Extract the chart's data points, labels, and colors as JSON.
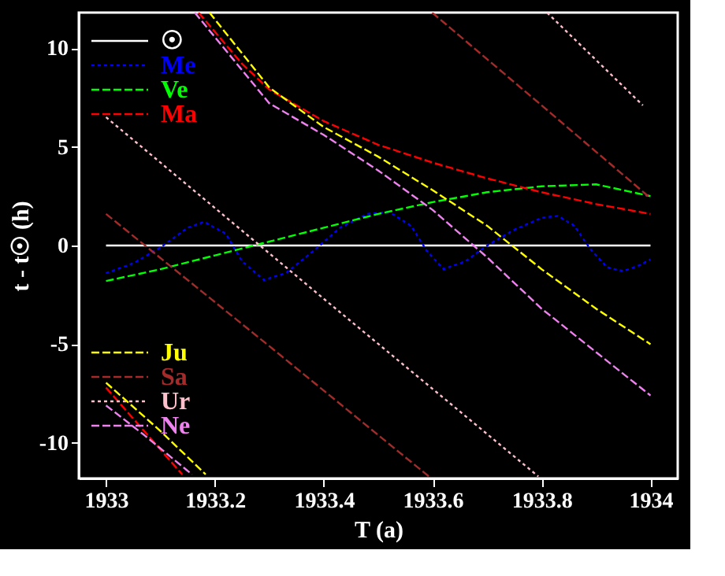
{
  "chart_data": {
    "type": "line",
    "xlabel": "T (a)",
    "ylabel": "t - t☉ (h)",
    "xlim": [
      1932.95,
      1934.05
    ],
    "ylim": [
      -11.8,
      11.8
    ],
    "xticks": [
      1933,
      1933.2,
      1933.4,
      1933.6,
      1933.8,
      1934
    ],
    "yticks": [
      -10,
      -5,
      0,
      5,
      10
    ],
    "grid": false,
    "legend": "left",
    "series": [
      {
        "name": "☉",
        "color": "#ffffff",
        "line_style": "solid",
        "x": [
          1933,
          1934
        ],
        "values": [
          0,
          0
        ]
      },
      {
        "name": "Me",
        "color": "#0000ff",
        "line_style": "dotted",
        "x": [
          1933.0,
          1933.05,
          1933.1,
          1933.15,
          1933.18,
          1933.22,
          1933.25,
          1933.29,
          1933.33,
          1933.38,
          1933.43,
          1933.48,
          1933.52,
          1933.56,
          1933.59,
          1933.62,
          1933.66,
          1933.7,
          1933.75,
          1933.8,
          1933.83,
          1933.86,
          1933.89,
          1933.92,
          1933.95,
          1933.98,
          1934.0
        ],
        "values": [
          -1.4,
          -0.9,
          -0.1,
          0.9,
          1.2,
          0.6,
          -0.8,
          -1.75,
          -1.4,
          -0.3,
          0.9,
          1.6,
          1.7,
          1.0,
          -0.3,
          -1.2,
          -0.8,
          0.0,
          0.8,
          1.4,
          1.5,
          1.0,
          -0.2,
          -1.1,
          -1.3,
          -1.0,
          -0.7
        ]
      },
      {
        "name": "Ve",
        "color": "#00ff00",
        "line_style": "dashed",
        "x": [
          1933.0,
          1933.1,
          1933.2,
          1933.3,
          1933.4,
          1933.5,
          1933.6,
          1933.7,
          1933.8,
          1933.9,
          1934.0
        ],
        "values": [
          -1.8,
          -1.2,
          -0.5,
          0.2,
          0.9,
          1.6,
          2.2,
          2.7,
          3.0,
          3.1,
          2.5
        ]
      },
      {
        "name": "Ma",
        "color": "#ff0000",
        "line_style": "dashed",
        "x": [
          1933.0,
          1933.07,
          1933.14,
          1933.15,
          1933.17,
          1933.25,
          1933.3,
          1933.4,
          1933.5,
          1933.6,
          1933.7,
          1933.8,
          1933.9,
          1934.0
        ],
        "values": [
          -7.2,
          -9.4,
          -11.6,
          null,
          11.8,
          9.2,
          7.9,
          6.3,
          5.1,
          4.2,
          3.4,
          2.7,
          2.1,
          1.6
        ]
      },
      {
        "name": "Ju",
        "color": "#ffff00",
        "line_style": "dashed",
        "x": [
          1933.0,
          1933.1,
          1933.183,
          1933.186,
          1933.19,
          1933.3,
          1933.4,
          1933.5,
          1933.6,
          1933.7,
          1933.8,
          1933.9,
          1934.0
        ],
        "values": [
          -6.95,
          -9.4,
          -11.6,
          null,
          11.8,
          8.0,
          6.0,
          4.5,
          2.8,
          1.0,
          -1.2,
          -3.2,
          -5.0
        ]
      },
      {
        "name": "Sa",
        "color": "#a52a2a",
        "line_style": "dashed",
        "x": [
          1933.0,
          1933.3,
          1933.593,
          1933.596,
          1933.599,
          1933.8,
          1934.0
        ],
        "values": [
          1.6,
          -5.1,
          -11.7,
          null,
          11.8,
          7.1,
          2.4
        ]
      },
      {
        "name": "Ur",
        "color": "#ffc0cb",
        "line_style": "dotted",
        "x": [
          1933.0,
          1933.4,
          1933.794,
          1933.8,
          1933.81,
          1933.986
        ],
        "values": [
          6.5,
          -2.7,
          -11.7,
          null,
          11.8,
          7.1
        ]
      },
      {
        "name": "Ne",
        "color": "#ee82ee",
        "line_style": "dashed",
        "x": [
          1933.0,
          1933.07,
          1933.158,
          1933.16,
          1933.163,
          1933.3,
          1933.4,
          1933.5,
          1933.6,
          1933.7,
          1933.8,
          1933.9,
          1934.0
        ],
        "values": [
          -8.1,
          -9.6,
          -11.6,
          null,
          11.8,
          7.2,
          5.6,
          3.8,
          1.8,
          -0.6,
          -3.2,
          -5.4,
          -7.6
        ]
      }
    ]
  }
}
